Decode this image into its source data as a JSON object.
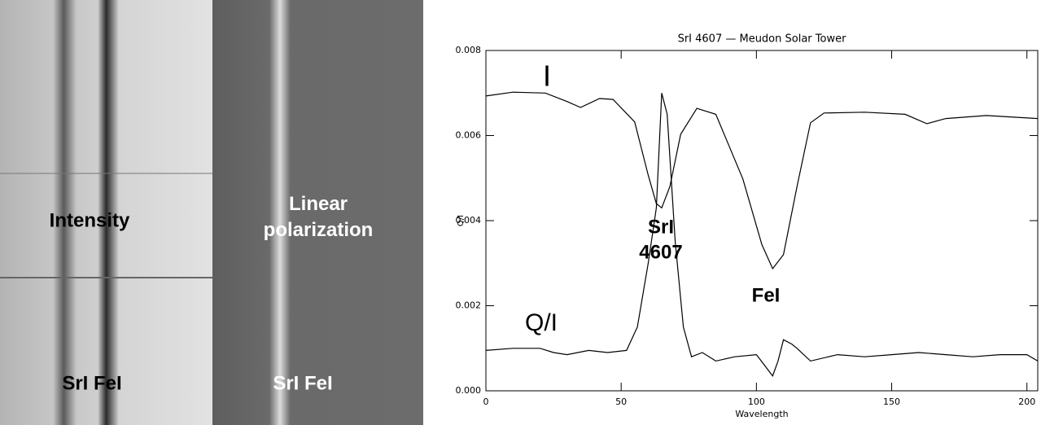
{
  "panels": {
    "intensity_label": "Intensity",
    "intensity_lines": "SrI FeI",
    "polarization_label": "Linear polarization",
    "polarization_lines": "SrI  FeI"
  },
  "chart_data": {
    "type": "line",
    "title": "SrI 4607 — Meudon Solar Tower",
    "x_label": "Wavelength",
    "y_label": "Q/I",
    "xlim": [
      0,
      204
    ],
    "ylim": [
      0,
      0.008
    ],
    "xticks": [
      0,
      50,
      100,
      150,
      200
    ],
    "yticks": [
      {
        "value": 0,
        "label": "0.000"
      },
      0.002,
      0.004,
      0.006,
      0.008
    ],
    "series": [
      {
        "name": "I",
        "color": "#000000",
        "x": [
          0,
          10,
          22,
          30,
          35,
          42,
          47,
          55,
          60,
          63,
          65,
          68,
          72,
          78,
          85,
          95,
          102,
          106,
          110,
          115,
          120,
          125,
          140,
          155,
          163,
          170,
          185,
          204
        ],
        "values": [
          0.00693,
          0.00702,
          0.007,
          0.0068,
          0.00666,
          0.00687,
          0.00685,
          0.00632,
          0.00507,
          0.0044,
          0.0043,
          0.0048,
          0.00603,
          0.00664,
          0.0065,
          0.00498,
          0.00344,
          0.00287,
          0.0032,
          0.0048,
          0.0063,
          0.00653,
          0.00655,
          0.0065,
          0.00628,
          0.0064,
          0.00647,
          0.0064
        ]
      },
      {
        "name": "Q/I",
        "color": "#000000",
        "x": [
          0,
          10,
          20,
          25,
          30,
          38,
          45,
          52,
          56,
          60,
          63,
          65,
          67,
          70,
          73,
          76,
          80,
          85,
          92,
          100,
          103,
          106,
          108,
          110,
          113,
          115,
          120,
          130,
          140,
          150,
          160,
          170,
          180,
          190,
          200,
          204
        ],
        "values": [
          0.00095,
          0.001,
          0.001,
          0.0009,
          0.00085,
          0.00095,
          0.0009,
          0.00095,
          0.0015,
          0.003,
          0.0043,
          0.007,
          0.0065,
          0.0035,
          0.0015,
          0.0008,
          0.0009,
          0.0007,
          0.0008,
          0.00085,
          0.0006,
          0.00035,
          0.0007,
          0.0012,
          0.0011,
          0.001,
          0.0007,
          0.00085,
          0.0008,
          0.00085,
          0.0009,
          0.00085,
          0.0008,
          0.00085,
          0.00085,
          0.0007
        ]
      }
    ],
    "annotations": [
      "I",
      "Q/I",
      "SrI",
      "4607",
      "FeI"
    ]
  }
}
